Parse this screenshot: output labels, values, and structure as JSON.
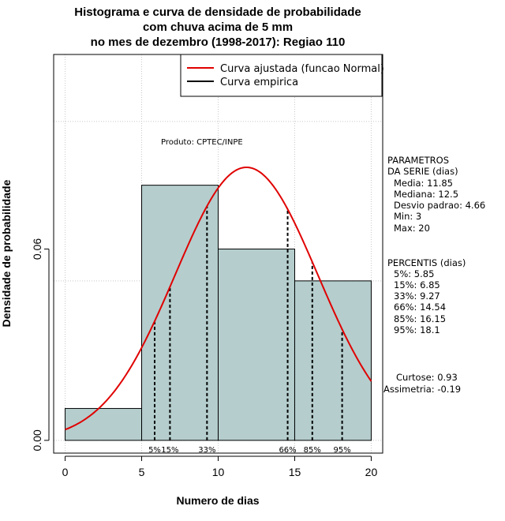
{
  "chart_data": {
    "type": "bar",
    "title_lines": [
      "Histograma e curva de densidade de probabilidade",
      "com chuva acima de 5 mm",
      "no mes de dezembro (1998-2017): Regiao 110"
    ],
    "xlabel": "Numero de dias",
    "ylabel": "Densidade de probabilidade",
    "xlim": [
      -0.75,
      20.75
    ],
    "ylim": [
      -0.004,
      0.121
    ],
    "x_ticks": [
      "0",
      "5",
      "10",
      "15",
      "20"
    ],
    "x_tick_values": [
      0,
      5,
      10,
      15,
      20
    ],
    "y_ticks": [
      "0.00",
      "0.06"
    ],
    "y_tick_values": [
      0.0,
      0.06
    ],
    "grid": true,
    "grid_x": [
      0,
      5,
      10,
      15,
      20
    ],
    "grid_y": [
      0.0,
      0.05,
      0.1
    ],
    "bins": [
      {
        "from": 0,
        "to": 5,
        "density": 0.01
      },
      {
        "from": 5,
        "to": 10,
        "density": 0.08
      },
      {
        "from": 10,
        "to": 15,
        "density": 0.06
      },
      {
        "from": 15,
        "to": 20,
        "density": 0.05
      }
    ],
    "bar_color": "#b5cdcd",
    "curve_color": "#e00000",
    "empirical_color": "#000000",
    "normal_curve": {
      "mean": 11.85,
      "sd": 4.66,
      "x_from": 0,
      "x_to": 20
    },
    "legend_position": "top-right",
    "legend": [
      {
        "label": "Curva ajustada (funcao Normal)",
        "color": "#e00000"
      },
      {
        "label": "Curva empirica",
        "color": "#000000"
      }
    ],
    "annotation": "Produto: CPTEC/INPE",
    "percentile_lines": [
      {
        "label": "5%",
        "x": 5.85
      },
      {
        "label": "15%",
        "x": 6.85
      },
      {
        "label": "33%",
        "x": 9.27
      },
      {
        "label": "66%",
        "x": 14.54
      },
      {
        "label": "85%",
        "x": 16.15
      },
      {
        "label": "95%",
        "x": 18.1
      }
    ],
    "parametros": {
      "heading": [
        "PARAMETROS",
        "DA SERIE (dias)"
      ],
      "items": [
        "Media: 11.85",
        "Mediana: 12.5",
        "Desvio padrao: 4.66",
        "Min: 3",
        "Max: 20"
      ]
    },
    "percentis": {
      "heading": "PERCENTIS (dias)",
      "items": [
        "5%: 5.85",
        "15%: 6.85",
        "33%: 9.27",
        "66%: 14.54",
        "85%: 16.15",
        "95%: 18.1"
      ]
    },
    "shape": {
      "items": [
        "Curtose: 0.93",
        "Assimetria: -0.19"
      ]
    }
  }
}
